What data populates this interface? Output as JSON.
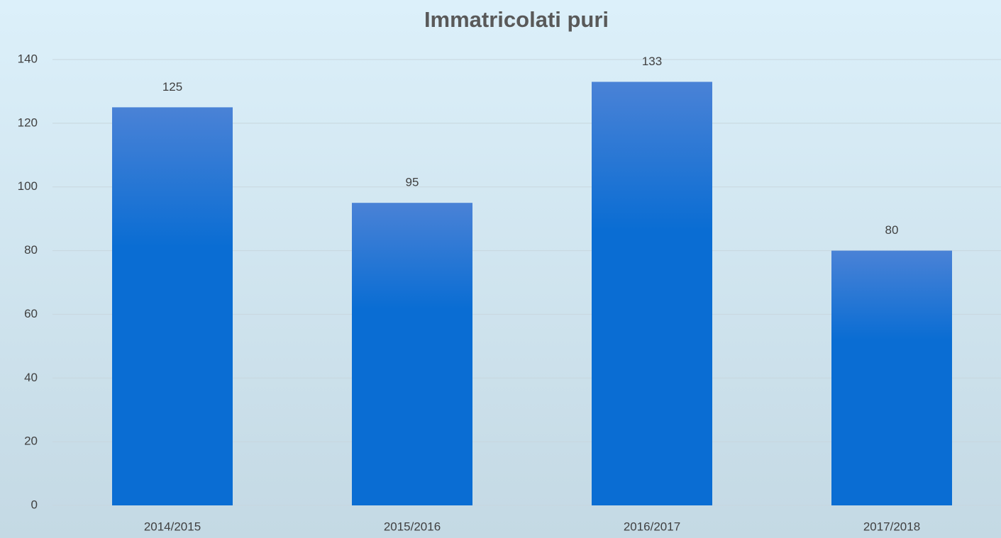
{
  "chart_data": {
    "type": "bar",
    "title": "Immatricolati puri",
    "categories": [
      "2014/2015",
      "2015/2016",
      "2016/2017",
      "2017/2018"
    ],
    "values": [
      125,
      95,
      133,
      80
    ],
    "color": "#0a6dd3",
    "ylim": [
      0,
      140
    ],
    "yticks": [
      0,
      20,
      40,
      60,
      80,
      100,
      120,
      140
    ],
    "grid": true
  }
}
